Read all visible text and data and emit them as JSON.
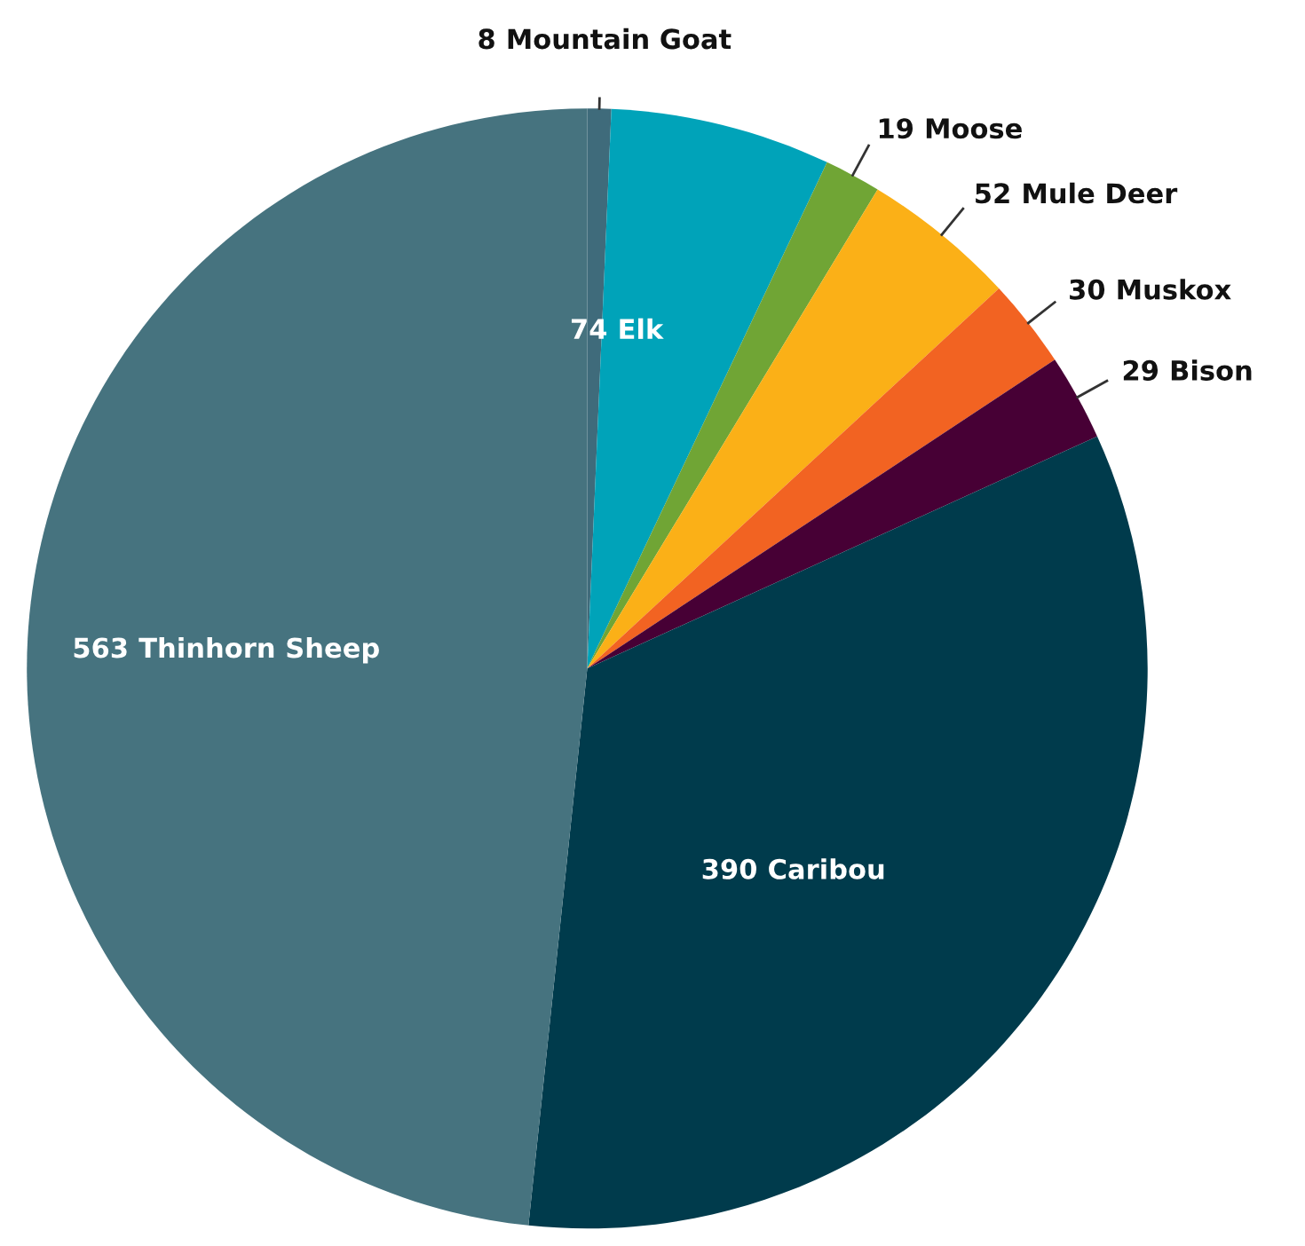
{
  "chart_data": {
    "type": "pie",
    "categories": [
      "Mountain Goat",
      "Elk",
      "Moose",
      "Mule Deer",
      "Muskox",
      "Bison",
      "Caribou",
      "Thinhorn Sheep"
    ],
    "values": [
      8,
      74,
      19,
      52,
      30,
      29,
      390,
      563
    ],
    "colors": [
      "#3f6b7b",
      "#00a3b9",
      "#70a535",
      "#fbb017",
      "#f26322",
      "#470035",
      "#003b4c",
      "#46737f"
    ],
    "data_labels": true
  }
}
